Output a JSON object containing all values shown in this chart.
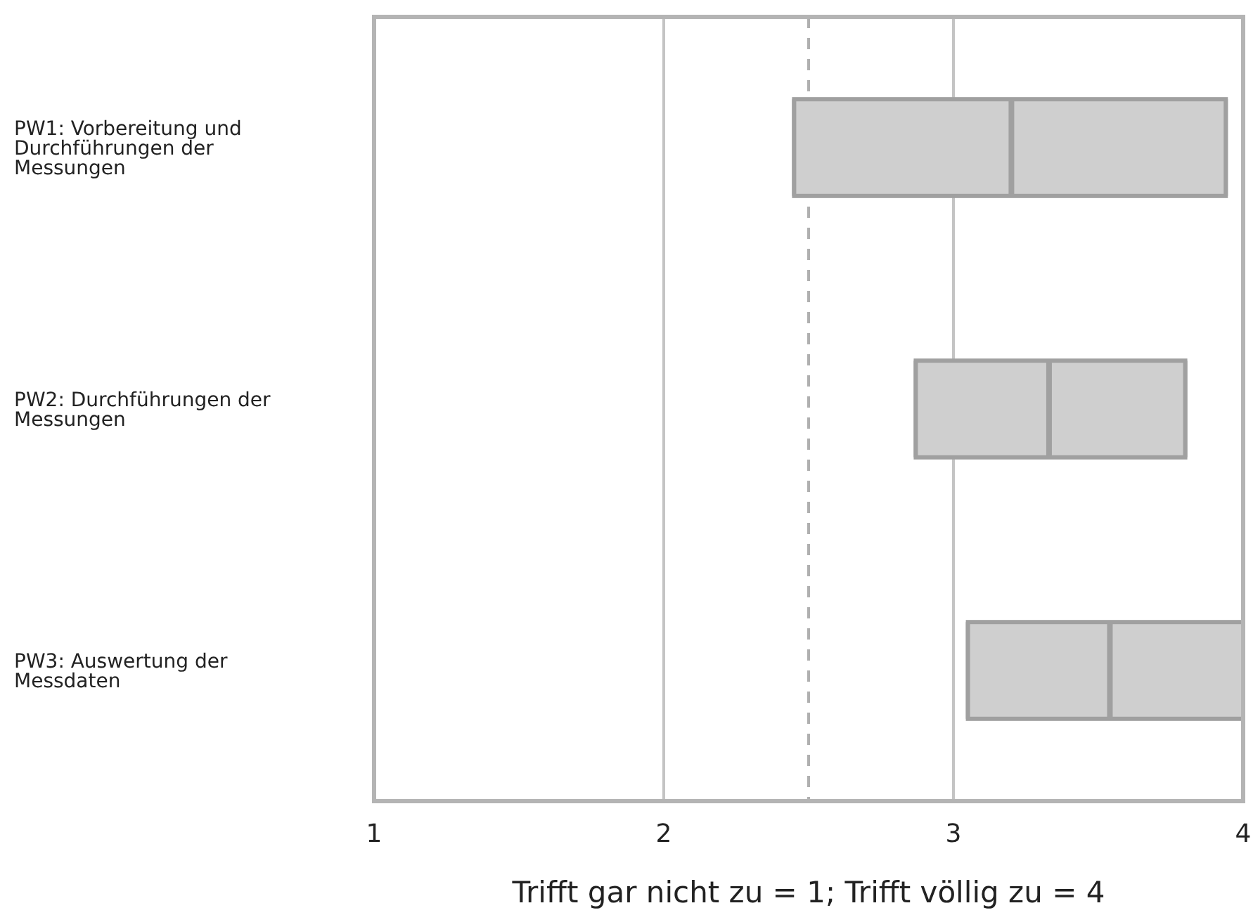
{
  "chart_data": {
    "type": "box",
    "orientation": "horizontal",
    "xlabel": "Trifft gar nicht zu = 1; Trifft völlig zu = 4",
    "categories": [
      "PW1: Vorbereitung und Durchführungen der Messungen",
      "PW2: Durchführungen der Messungen",
      "PW3: Auswertung der Messdaten"
    ],
    "series": [
      {
        "color": "#cfcfcf",
        "boxes": [
          {
            "low": 2.45,
            "q1": 2.45,
            "median": 3.2,
            "q3": 3.94,
            "high": 3.94
          },
          {
            "low": 2.87,
            "q1": 2.87,
            "median": 3.33,
            "q3": 3.8,
            "high": 3.8
          },
          {
            "low": 3.05,
            "q1": 3.05,
            "median": 3.54,
            "q3": 4.0,
            "high": 4.0
          }
        ]
      }
    ],
    "xlim": [
      1,
      4
    ],
    "xticks": [
      1,
      2,
      3,
      4
    ],
    "grid": "x",
    "ref_lines": [
      {
        "axis": "x",
        "value": 2.5,
        "line_style": "dashed",
        "color": "#b0b0b0"
      }
    ]
  }
}
